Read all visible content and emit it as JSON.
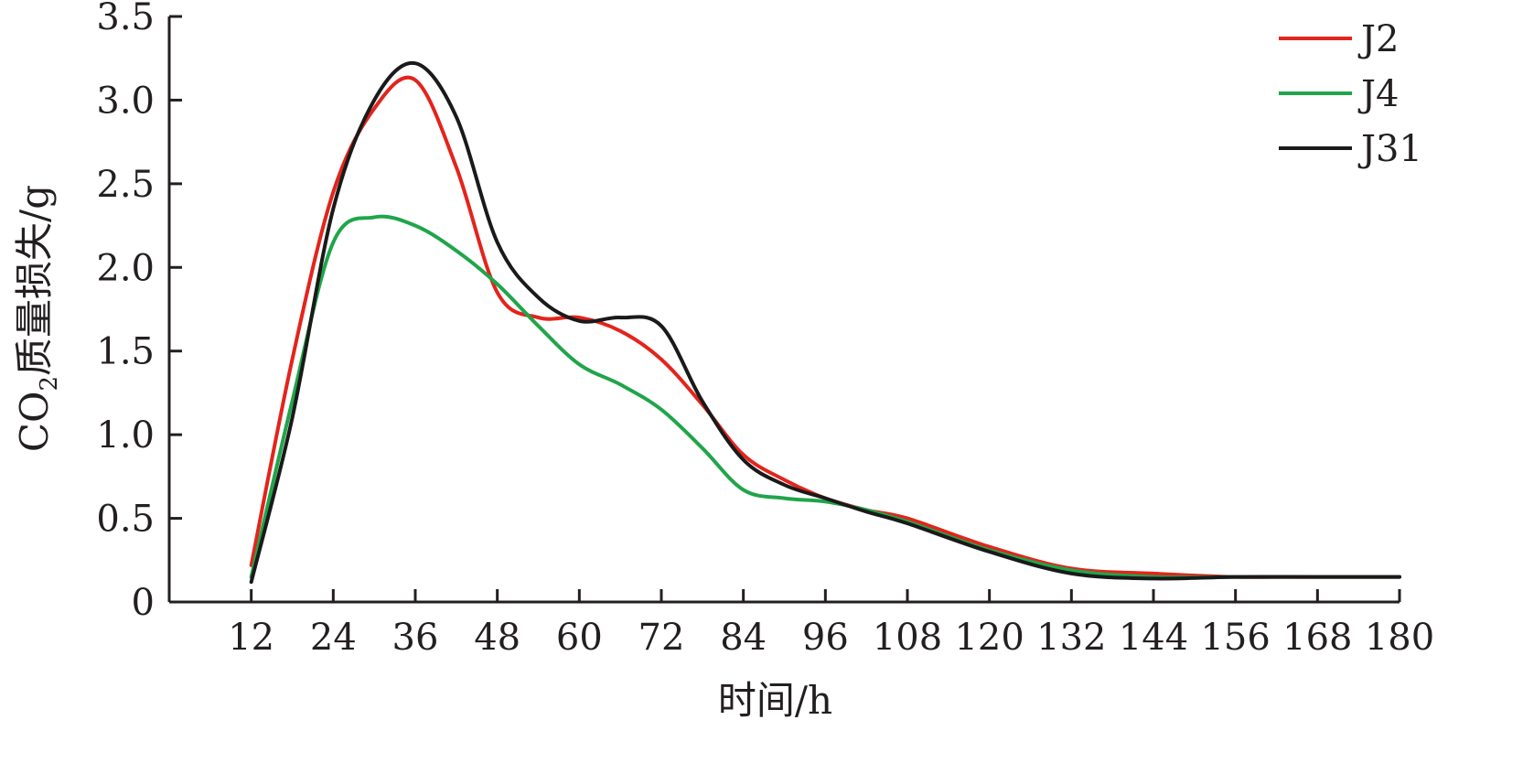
{
  "chart_data": {
    "type": "line",
    "xlabel": "时间/h",
    "ylabel": {
      "prefix": "CO",
      "subscript": "2",
      "suffix": "质量损失/g"
    },
    "xlim": [
      0,
      180
    ],
    "ylim": [
      0,
      3.5
    ],
    "x_ticks": [
      "12",
      "24",
      "36",
      "48",
      "60",
      "72",
      "84",
      "96",
      "108",
      "120",
      "132",
      "144",
      "156",
      "168",
      "180"
    ],
    "y_ticks": [
      "0",
      "0.5",
      "1.0",
      "1.5",
      "2.0",
      "2.5",
      "3.0",
      "3.5"
    ],
    "grid": false,
    "legend_position": "top-right",
    "series": [
      {
        "name": "J2",
        "color": "#e3241c",
        "x": [
          12,
          18,
          24,
          30,
          36,
          42,
          48,
          54,
          60,
          66,
          72,
          78,
          84,
          90,
          96,
          102,
          108,
          120,
          132,
          144,
          156,
          168,
          180
        ],
        "y": [
          0.22,
          1.45,
          2.45,
          2.95,
          3.12,
          2.6,
          1.85,
          1.7,
          1.7,
          1.62,
          1.45,
          1.18,
          0.88,
          0.73,
          0.62,
          0.55,
          0.5,
          0.33,
          0.2,
          0.17,
          0.15,
          0.15,
          0.15
        ]
      },
      {
        "name": "J4",
        "color": "#20a54a",
        "x": [
          12,
          18,
          24,
          30,
          36,
          42,
          48,
          54,
          60,
          66,
          72,
          78,
          84,
          90,
          96,
          102,
          108,
          120,
          132,
          144,
          156,
          168,
          180
        ],
        "y": [
          0.15,
          1.2,
          2.15,
          2.3,
          2.25,
          2.1,
          1.9,
          1.65,
          1.42,
          1.3,
          1.15,
          0.92,
          0.67,
          0.62,
          0.6,
          0.55,
          0.48,
          0.31,
          0.19,
          0.15,
          0.15,
          0.15,
          0.15
        ]
      },
      {
        "name": "J31",
        "color": "#1a1a1a",
        "x": [
          12,
          18,
          24,
          30,
          36,
          42,
          48,
          54,
          60,
          66,
          72,
          78,
          84,
          90,
          96,
          102,
          108,
          120,
          132,
          144,
          156,
          168,
          180
        ],
        "y": [
          0.12,
          1.1,
          2.35,
          3.0,
          3.22,
          2.9,
          2.15,
          1.82,
          1.68,
          1.7,
          1.65,
          1.2,
          0.85,
          0.7,
          0.62,
          0.54,
          0.47,
          0.3,
          0.17,
          0.14,
          0.15,
          0.15,
          0.15
        ]
      }
    ]
  }
}
